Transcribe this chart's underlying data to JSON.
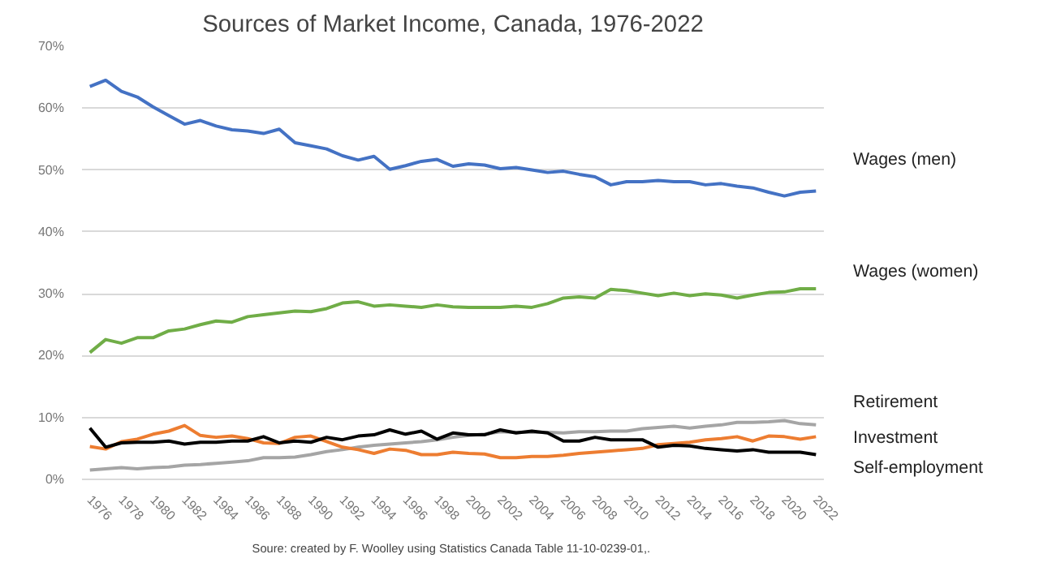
{
  "chart_data": {
    "type": "line",
    "title": "Sources of Market Income, Canada, 1976-2022",
    "x": [
      1976,
      1977,
      1978,
      1979,
      1980,
      1981,
      1982,
      1983,
      1984,
      1985,
      1986,
      1987,
      1988,
      1989,
      1990,
      1991,
      1992,
      1993,
      1994,
      1995,
      1996,
      1997,
      1998,
      1999,
      2000,
      2001,
      2002,
      2003,
      2004,
      2005,
      2006,
      2007,
      2008,
      2009,
      2010,
      2011,
      2012,
      2013,
      2014,
      2015,
      2016,
      2017,
      2018,
      2019,
      2020,
      2021,
      2022
    ],
    "series": [
      {
        "name": "Wages (men)",
        "color": "#4472c4",
        "values": [
          63.5,
          64.5,
          62.7,
          61.8,
          60.2,
          58.8,
          57.4,
          58.0,
          57.1,
          56.5,
          56.3,
          55.9,
          56.6,
          54.4,
          53.9,
          53.4,
          52.3,
          51.6,
          52.2,
          50.1,
          50.7,
          51.4,
          51.7,
          50.6,
          51.0,
          50.8,
          50.2,
          50.4,
          50.0,
          49.6,
          49.8,
          49.3,
          48.9,
          47.6,
          48.1,
          48.1,
          48.3,
          48.1,
          48.1,
          47.6,
          47.8,
          47.4,
          47.1,
          46.4,
          45.8,
          46.4,
          46.6
        ]
      },
      {
        "name": "Wages (women)",
        "color": "#70ad47",
        "values": [
          20.5,
          22.6,
          22.0,
          22.9,
          22.9,
          24.0,
          24.3,
          25.0,
          25.6,
          25.4,
          26.3,
          26.6,
          26.9,
          27.2,
          27.1,
          27.6,
          28.5,
          28.7,
          28.0,
          28.2,
          28.0,
          27.8,
          28.2,
          27.9,
          27.8,
          27.8,
          27.8,
          28.0,
          27.8,
          28.4,
          29.3,
          29.5,
          29.3,
          30.7,
          30.5,
          30.1,
          29.7,
          30.1,
          29.7,
          30.0,
          29.8,
          29.3,
          29.8,
          30.2,
          30.3,
          30.8,
          30.8
        ]
      },
      {
        "name": "Retirement",
        "color": "#a5a5a5",
        "values": [
          1.5,
          1.7,
          1.9,
          1.7,
          1.9,
          2.0,
          2.3,
          2.4,
          2.6,
          2.8,
          3.0,
          3.5,
          3.5,
          3.6,
          4.0,
          4.5,
          4.8,
          5.2,
          5.5,
          5.7,
          5.9,
          6.1,
          6.4,
          6.8,
          7.1,
          7.3,
          7.7,
          7.6,
          7.6,
          7.6,
          7.5,
          7.7,
          7.7,
          7.8,
          7.8,
          8.2,
          8.4,
          8.6,
          8.3,
          8.6,
          8.8,
          9.2,
          9.2,
          9.3,
          9.5,
          9.0,
          8.8
        ]
      },
      {
        "name": "Investment",
        "color": "#ed7d31",
        "values": [
          5.3,
          4.9,
          6.1,
          6.5,
          7.3,
          7.8,
          8.7,
          7.1,
          6.8,
          7.0,
          6.6,
          5.9,
          5.8,
          6.8,
          7.0,
          6.1,
          5.2,
          4.8,
          4.2,
          4.9,
          4.7,
          4.0,
          4.0,
          4.4,
          4.2,
          4.1,
          3.5,
          3.5,
          3.7,
          3.7,
          3.9,
          4.2,
          4.4,
          4.6,
          4.8,
          5.0,
          5.6,
          5.8,
          6.0,
          6.4,
          6.6,
          6.9,
          6.2,
          7.0,
          6.9,
          6.5,
          6.9
        ]
      },
      {
        "name": "Self-employment",
        "color": "#000000",
        "values": [
          8.3,
          5.2,
          5.9,
          6.0,
          6.0,
          6.2,
          5.7,
          6.0,
          6.0,
          6.2,
          6.2,
          6.9,
          5.9,
          6.2,
          6.0,
          6.8,
          6.4,
          7.0,
          7.2,
          8.0,
          7.3,
          7.8,
          6.5,
          7.5,
          7.2,
          7.2,
          8.0,
          7.5,
          7.8,
          7.5,
          6.2,
          6.2,
          6.8,
          6.4,
          6.4,
          6.4,
          5.2,
          5.5,
          5.4,
          5.0,
          4.8,
          4.6,
          4.8,
          4.4,
          4.4,
          4.4,
          4.0
        ]
      }
    ],
    "xlim": [
      1975.5,
      2022.5
    ],
    "xticks": [
      1976,
      1978,
      1980,
      1982,
      1984,
      1986,
      1988,
      1990,
      1992,
      1994,
      1996,
      1998,
      2000,
      2002,
      2004,
      2006,
      2008,
      2010,
      2012,
      2014,
      2016,
      2018,
      2020,
      2022
    ],
    "ylim": [
      0,
      70
    ],
    "yticks": [
      {
        "value": 0,
        "label": "0%"
      },
      {
        "value": 10,
        "label": "10%"
      },
      {
        "value": 20,
        "label": "20%"
      },
      {
        "value": 30,
        "label": "30%"
      },
      {
        "value": 40,
        "label": "40%"
      },
      {
        "value": 50,
        "label": "50%"
      },
      {
        "value": 60,
        "label": "60%"
      },
      {
        "value": 70,
        "label": "70%"
      }
    ],
    "grid": "y",
    "legend": false,
    "marker": "none",
    "line_style": "solid",
    "annotations": [
      "Soure: created by F. Woolley using  Statistics Canada Table 11-10-0239-01,."
    ]
  }
}
